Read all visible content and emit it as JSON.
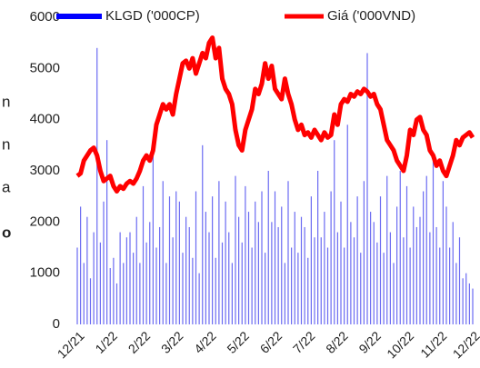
{
  "side_text": [
    "n",
    "n",
    "a",
    "o"
  ],
  "chart_data": {
    "type": "bar_line",
    "categories": [
      "12/21",
      null,
      null,
      null,
      null,
      null,
      null,
      null,
      null,
      null,
      "1/22",
      null,
      null,
      null,
      null,
      null,
      null,
      null,
      null,
      null,
      "2/22",
      null,
      null,
      null,
      null,
      null,
      null,
      null,
      null,
      null,
      "3/22",
      null,
      null,
      null,
      null,
      null,
      null,
      null,
      null,
      null,
      "4/22",
      null,
      null,
      null,
      null,
      null,
      null,
      null,
      null,
      null,
      "5/22",
      null,
      null,
      null,
      null,
      null,
      null,
      null,
      null,
      null,
      "6/22",
      null,
      null,
      null,
      null,
      null,
      null,
      null,
      null,
      null,
      "7/22",
      null,
      null,
      null,
      null,
      null,
      null,
      null,
      null,
      null,
      "8/22",
      null,
      null,
      null,
      null,
      null,
      null,
      null,
      null,
      null,
      "9/22",
      null,
      null,
      null,
      null,
      null,
      null,
      null,
      null,
      null,
      "10/22",
      null,
      null,
      null,
      null,
      null,
      null,
      null,
      null,
      null,
      "11/22",
      null,
      null,
      null,
      null,
      null,
      null,
      null,
      null,
      null,
      "12/22"
    ],
    "series": [
      {
        "name": "KLGD ('000CP)",
        "color": "#3a3aee",
        "kind": "bar",
        "values": [
          1500,
          2300,
          1200,
          2100,
          900,
          1800,
          5400,
          1600,
          2400,
          3600,
          1100,
          1300,
          800,
          1800,
          1200,
          1700,
          1800,
          1400,
          2100,
          1200,
          2700,
          1600,
          2000,
          3300,
          1500,
          1900,
          2800,
          1200,
          2500,
          1700,
          2600,
          2400,
          1400,
          2100,
          1900,
          1300,
          2600,
          1000,
          3500,
          2200,
          1800,
          2500,
          1300,
          2800,
          1600,
          2400,
          1800,
          1200,
          2900,
          2100,
          1600,
          2700,
          2200,
          1500,
          2400,
          2000,
          2600,
          1400,
          3000,
          2000,
          2600,
          1900,
          2300,
          1200,
          2800,
          1500,
          2200,
          1400,
          2100,
          1900,
          1300,
          2500,
          1700,
          3000,
          1700,
          2200,
          1500,
          2600,
          3600,
          1800,
          2400,
          1500,
          3900,
          2000,
          1700,
          2500,
          1400,
          2800,
          5300,
          2200,
          2000,
          1600,
          2500,
          1400,
          2900,
          1800,
          1200,
          2300,
          3000,
          1700,
          2700,
          1500,
          2300,
          1900,
          2100,
          2600,
          2900,
          1800,
          3300,
          1900,
          1500,
          2800,
          2300,
          1500,
          2000,
          1200,
          1700,
          900,
          1000,
          800,
          700
        ]
      },
      {
        "name": "Giá ('000VND)",
        "color": "#ff0000",
        "kind": "line",
        "values": [
          2900,
          2950,
          3200,
          3300,
          3400,
          3450,
          3300,
          3000,
          2800,
          2850,
          2900,
          2700,
          2600,
          2700,
          2650,
          2750,
          2800,
          2750,
          2850,
          3000,
          3200,
          3300,
          3200,
          3400,
          3900,
          4100,
          4300,
          4200,
          4300,
          4100,
          4500,
          4800,
          5100,
          5150,
          5000,
          5200,
          4900,
          5100,
          5300,
          5200,
          5500,
          5600,
          5200,
          5400,
          4800,
          4600,
          4500,
          4300,
          3800,
          3500,
          3400,
          3800,
          4000,
          4200,
          4600,
          4500,
          4700,
          5100,
          4800,
          5050,
          4600,
          4500,
          4400,
          4800,
          4500,
          4300,
          4000,
          3800,
          3900,
          3700,
          3750,
          3650,
          3800,
          3700,
          3600,
          3750,
          3650,
          3700,
          4100,
          3900,
          4300,
          4400,
          4350,
          4500,
          4450,
          4550,
          4500,
          4600,
          4550,
          4450,
          4500,
          4300,
          4200,
          3900,
          3600,
          3500,
          3400,
          3200,
          3100,
          3000,
          3300,
          3800,
          3700,
          4000,
          4050,
          3800,
          3700,
          3400,
          3300,
          3100,
          3200,
          3000,
          2900,
          3100,
          3300,
          3600,
          3500,
          3650,
          3700,
          3750,
          3650
        ]
      }
    ],
    "ylim": [
      0,
      6000
    ],
    "yticks": [
      0,
      1000,
      2000,
      3000,
      4000,
      5000,
      6000
    ]
  }
}
